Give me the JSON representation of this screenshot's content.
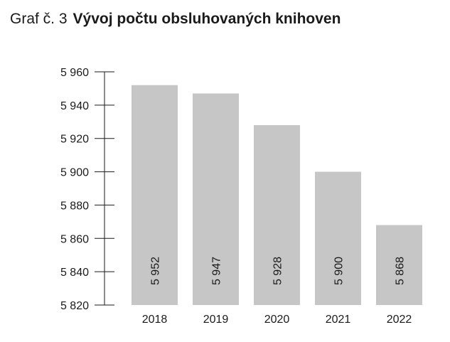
{
  "header": {
    "label": "Graf č. 3",
    "title": "Vývoj počtu obsluhovaných knihoven"
  },
  "chart_data": {
    "type": "bar",
    "categories": [
      "2018",
      "2019",
      "2020",
      "2021",
      "2022"
    ],
    "values": [
      5952,
      5947,
      5928,
      5900,
      5868
    ],
    "value_labels": [
      "5 952",
      "5 947",
      "5 928",
      "5 900",
      "5 868"
    ],
    "ylim": [
      5820,
      5960
    ],
    "yticks": [
      5820,
      5840,
      5860,
      5880,
      5900,
      5920,
      5940,
      5960
    ],
    "ytick_labels": [
      "5 820",
      "5 840",
      "5 860",
      "5 880",
      "5 900",
      "5 920",
      "5 940",
      "5 960"
    ],
    "grid": false,
    "bar_color": "#c6c6c6",
    "axis_color": "#1a1a1a"
  }
}
